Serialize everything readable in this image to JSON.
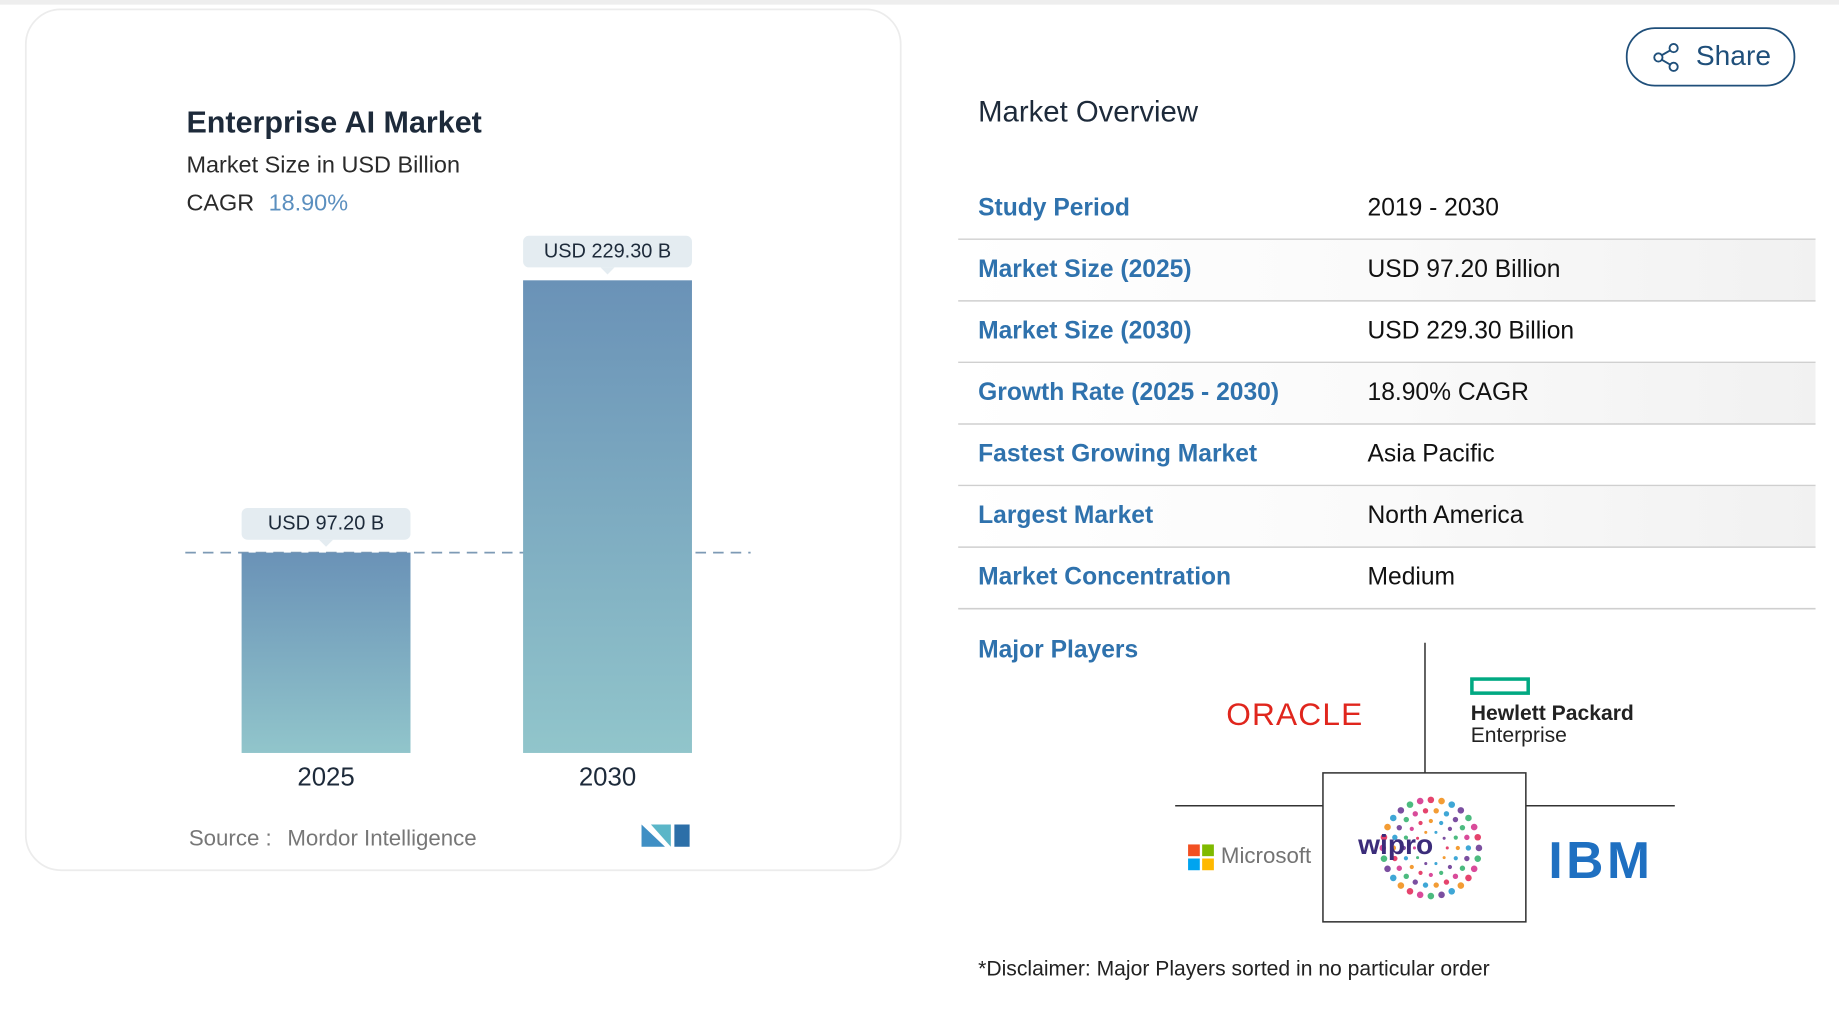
{
  "chart": {
    "type": "bar",
    "title": "Enterprise AI Market",
    "subtitle": "Market Size in USD Billion",
    "cagr_label": "CAGR",
    "cagr_value": "18.90%",
    "categories": [
      "2025",
      "2030"
    ],
    "values": [
      97.2,
      229.3
    ],
    "value_labels": [
      "USD 97.20 B",
      "USD 229.30 B"
    ],
    "source_label": "Source :",
    "source": "Mordor Intelligence"
  },
  "share": "Share",
  "overview": {
    "title": "Market Overview",
    "rows": [
      [
        "Study Period",
        "2019 - 2030"
      ],
      [
        "Market Size (2025)",
        "USD 97.20 Billion"
      ],
      [
        "Market Size (2030)",
        "USD 229.30 Billion"
      ],
      [
        "Growth Rate (2025 - 2030)",
        "18.90% CAGR"
      ],
      [
        "Fastest Growing Market",
        "Asia Pacific"
      ],
      [
        "Largest Market",
        "North America"
      ],
      [
        "Market Concentration",
        "Medium"
      ]
    ]
  },
  "major_players": {
    "title": "Major Players",
    "logos": [
      "ORACLE",
      "Hewlett Packard",
      "Enterprise",
      "Microsoft",
      "wipro",
      "IBM"
    ]
  },
  "disclaimer": "*Disclaimer: Major Players sorted in no particular order"
}
